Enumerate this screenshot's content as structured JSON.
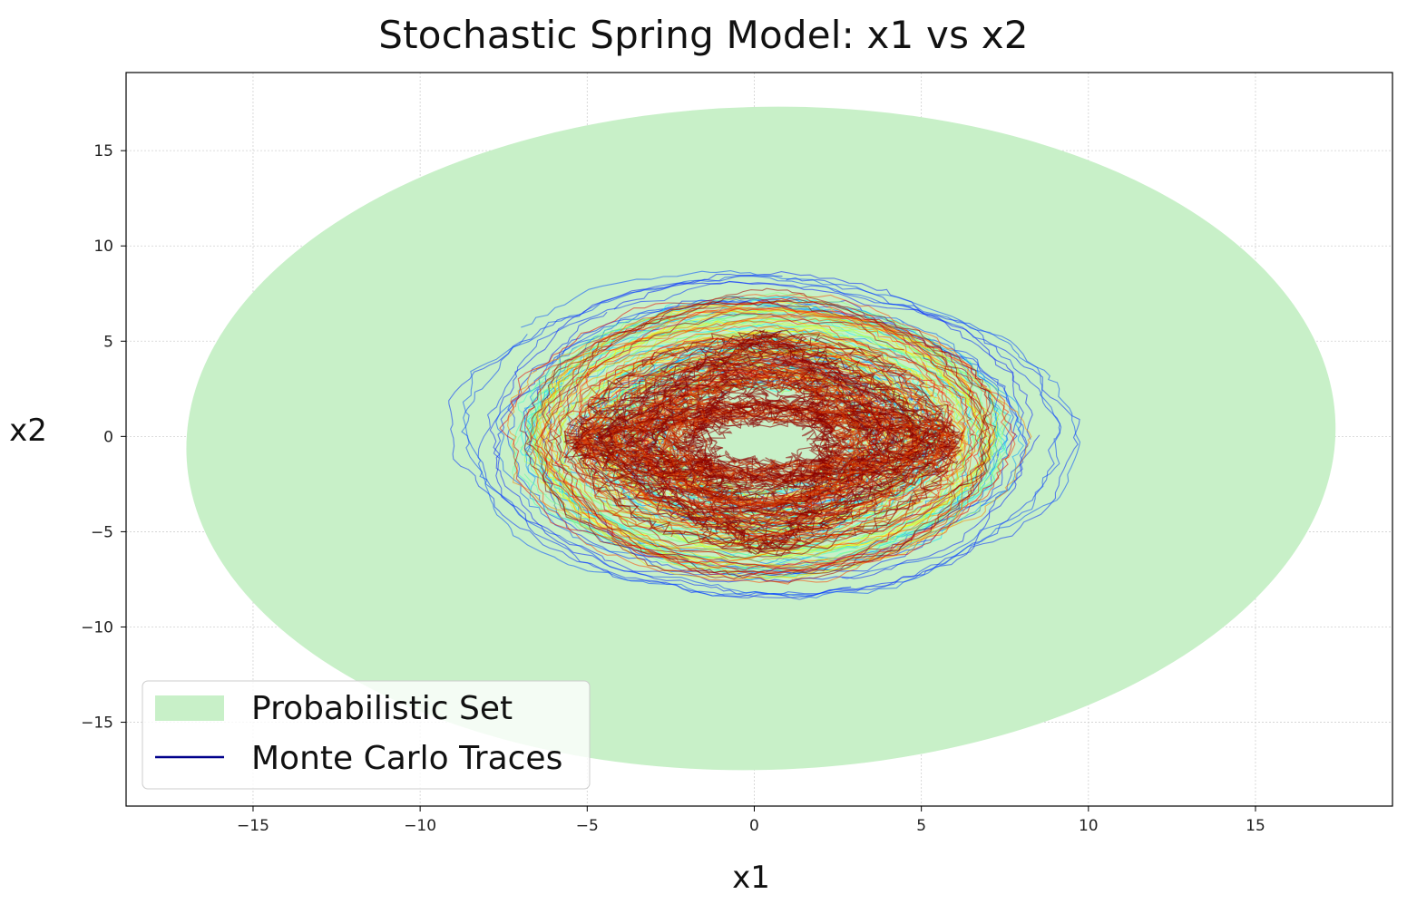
{
  "chart_data": {
    "type": "line",
    "title": "Stochastic Spring Model: x1 vs x2",
    "xlabel": "x1",
    "ylabel": "x2",
    "xlim": [
      -18.8,
      19.1
    ],
    "ylim": [
      -19.4,
      19.1
    ],
    "xticks": [
      -15,
      -10,
      -5,
      0,
      5,
      10,
      15
    ],
    "yticks": [
      -15,
      -10,
      -5,
      0,
      5,
      10,
      15
    ],
    "xtick_labels": [
      "−15",
      "−10",
      "−5",
      "0",
      "5",
      "10",
      "15"
    ],
    "ytick_labels": [
      "−15",
      "−10",
      "−5",
      "0",
      "5",
      "10",
      "15"
    ],
    "grid": true,
    "legend_position": "lower-left",
    "legend": [
      {
        "label": "Probabilistic Set",
        "kind": "patch",
        "color": "#c8f0c8"
      },
      {
        "label": "Monte Carlo Traces",
        "kind": "line",
        "color": "#00008b"
      }
    ],
    "probabilistic_set": {
      "shape": "ellipse",
      "center": [
        0.2,
        -0.1
      ],
      "semi_axes": [
        17.2,
        17.4
      ],
      "color": "#c8f0c8"
    },
    "monte_carlo_traces": {
      "count": 140,
      "colormap": "jet",
      "envelope_x": [
        -7.6,
        10.0
      ],
      "envelope_y": [
        -8.5,
        8.9
      ],
      "core_color": "#8b0000"
    }
  }
}
